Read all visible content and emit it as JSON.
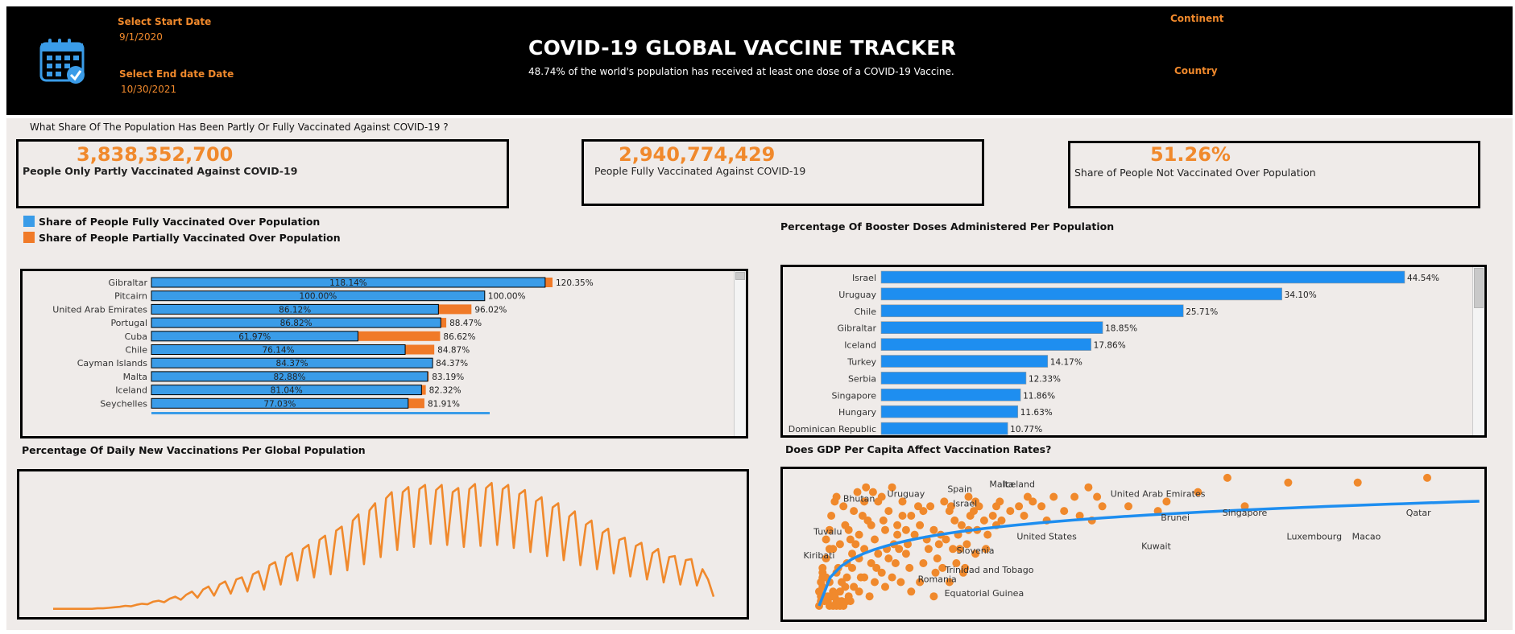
{
  "header": {
    "title": "COVID-19 GLOBAL VACCINE TRACKER",
    "subtitle": "48.74% of the world's population has received at least one dose of a COVID-19 Vaccine.",
    "start_label": "Select Start Date",
    "start_value": "9/1/2020",
    "end_label": "Select End date Date",
    "end_value": "10/30/2021",
    "continent_label": "Continent",
    "country_label": "Country",
    "icon": "calendar-check-icon"
  },
  "question": "What Share Of The Population Has Been Partly Or Fully Vaccinated Against COVID-19 ?",
  "kpis": [
    {
      "value": "3,838,352,700",
      "label": "People Only Partly Vaccinated Against COVID-19"
    },
    {
      "value": "2,940,774,429",
      "label": "People Fully Vaccinated Against COVID-19"
    },
    {
      "value": "51.26%",
      "label": "Share of People Not Vaccinated Over Population"
    }
  ],
  "legend": {
    "fully": "Share of People Fully Vaccinated Over Population",
    "partial": "Share of People Partially Vaccinated Over Population"
  },
  "colors": {
    "blue": "#3a9ce8",
    "orange": "#f07a28",
    "booster_blue": "#1e8ef0",
    "line_orange": "#f0892c"
  },
  "titles": {
    "booster": "Percentage Of Booster Doses Administered Per Population",
    "daily": "Percentage Of Daily New Vaccinations Per Global Population",
    "gdp": "Does GDP Per Capita Affect Vaccination Rates?"
  },
  "chart_data": [
    {
      "type": "bar",
      "id": "vaccination-share",
      "categories": [
        "Gibraltar",
        "Pitcairn",
        "United Arab Emirates",
        "Portugal",
        "Cuba",
        "Chile",
        "Cayman Islands",
        "Malta",
        "Iceland",
        "Seychelles"
      ],
      "series": [
        {
          "name": "Share of People Fully Vaccinated Over Population",
          "values": [
            118.14,
            100.0,
            86.12,
            86.82,
            61.97,
            76.14,
            84.37,
            82.88,
            81.04,
            77.03
          ],
          "labels": [
            "118.14%",
            "100.00%",
            "86.12%",
            "86.82%",
            "61.97%",
            "76.14%",
            "84.37%",
            "82.88%",
            "81.04%",
            "77.03%"
          ]
        },
        {
          "name": "Share of People Partially Vaccinated Over Population",
          "values": [
            120.35,
            100.0,
            96.02,
            88.47,
            86.62,
            84.87,
            84.37,
            83.19,
            82.32,
            81.91
          ],
          "labels": [
            "120.35%",
            "100.00%",
            "96.02%",
            "88.47%",
            "86.62%",
            "84.87%",
            "84.37%",
            "83.19%",
            "82.32%",
            "81.91%"
          ]
        }
      ],
      "xlim": [
        0,
        120.35
      ]
    },
    {
      "type": "bar",
      "id": "booster",
      "categories": [
        "Israel",
        "Uruguay",
        "Chile",
        "Gibraltar",
        "Iceland",
        "Turkey",
        "Serbia",
        "Singapore",
        "Hungary",
        "Dominican Republic"
      ],
      "values": [
        44.54,
        34.1,
        25.71,
        18.85,
        17.86,
        14.17,
        12.33,
        11.86,
        11.63,
        10.77
      ],
      "labels": [
        "44.54%",
        "34.10%",
        "25.71%",
        "18.85%",
        "17.86%",
        "14.17%",
        "12.33%",
        "11.86%",
        "11.63%",
        "10.77%"
      ],
      "xlim": [
        0,
        44.54
      ]
    },
    {
      "type": "line",
      "id": "daily-vaccinations",
      "x_start": "9/1/2020",
      "x_end": "10/30/2021",
      "values": [
        0.002,
        0.002,
        0.002,
        0.002,
        0.002,
        0.002,
        0.002,
        0.002,
        0.003,
        0.003,
        0.004,
        0.005,
        0.006,
        0.008,
        0.007,
        0.01,
        0.012,
        0.011,
        0.016,
        0.018,
        0.015,
        0.022,
        0.026,
        0.02,
        0.03,
        0.036,
        0.024,
        0.04,
        0.046,
        0.028,
        0.05,
        0.056,
        0.032,
        0.06,
        0.064,
        0.036,
        0.07,
        0.076,
        0.04,
        0.088,
        0.094,
        0.05,
        0.104,
        0.112,
        0.058,
        0.12,
        0.128,
        0.064,
        0.138,
        0.146,
        0.07,
        0.156,
        0.164,
        0.078,
        0.176,
        0.188,
        0.09,
        0.196,
        0.21,
        0.104,
        0.22,
        0.232,
        0.118,
        0.232,
        0.242,
        0.124,
        0.238,
        0.246,
        0.13,
        0.236,
        0.246,
        0.128,
        0.232,
        0.24,
        0.124,
        0.238,
        0.248,
        0.126,
        0.24,
        0.25,
        0.128,
        0.238,
        0.246,
        0.122,
        0.228,
        0.236,
        0.114,
        0.214,
        0.222,
        0.106,
        0.202,
        0.21,
        0.098,
        0.184,
        0.194,
        0.088,
        0.168,
        0.176,
        0.08,
        0.152,
        0.16,
        0.072,
        0.138,
        0.142,
        0.066,
        0.126,
        0.132,
        0.06,
        0.112,
        0.12,
        0.054,
        0.104,
        0.106,
        0.05,
        0.098,
        0.1,
        0.048,
        0.08,
        0.06,
        0.026
      ],
      "ylim": [
        0,
        0.26
      ]
    },
    {
      "type": "scatter",
      "id": "gdp-vs-vaccination",
      "annotations": [
        "Bhutan",
        "Uruguay",
        "Spain",
        "Malta",
        "Iceland",
        "Israel",
        "United Arab Emirates",
        "Brunei",
        "Singapore",
        "Qatar",
        "Luxembourg",
        "Macao",
        "Kuwait",
        "United States",
        "Tuvalu",
        "Kiribati",
        "Slovenia",
        "Trinidad and Tobago",
        "Romania",
        "Equatorial Guinea"
      ],
      "points": [
        [
          0.33,
          0.1
        ],
        [
          0.25,
          0.17
        ],
        [
          0.21,
          0.08
        ],
        [
          0.16,
          0.05
        ],
        [
          0.18,
          0.12
        ],
        [
          0.13,
          0.02
        ],
        [
          0.28,
          0.14
        ],
        [
          0.22,
          0.03
        ],
        [
          0.19,
          0.22
        ],
        [
          0.14,
          0.1
        ],
        [
          0.12,
          0.06
        ],
        [
          0.25,
          0.04
        ],
        [
          0.16,
          0.16
        ],
        [
          0.22,
          0.13
        ],
        [
          0.2,
          0.07
        ],
        [
          0.26,
          0.09
        ],
        [
          0.34,
          0.06
        ],
        [
          0.38,
          0.18
        ],
        [
          0.33,
          0.15
        ],
        [
          0.29,
          0.11
        ],
        [
          0.42,
          0.14
        ],
        [
          0.47,
          0.18
        ],
        [
          0.44,
          0.11
        ],
        [
          0.4,
          0.09
        ],
        [
          0.36,
          0.12
        ],
        [
          0.31,
          0.13
        ],
        [
          0.27,
          0.16
        ],
        [
          0.5,
          0.2
        ],
        [
          0.55,
          0.17
        ],
        [
          0.6,
          0.16
        ],
        [
          0.65,
          0.15
        ],
        [
          0.7,
          0.2
        ],
        [
          0.68,
          0.17
        ],
        [
          0.58,
          0.22
        ],
        [
          0.63,
          0.19
        ],
        [
          0.72,
          0.14
        ],
        [
          0.76,
          0.16
        ],
        [
          0.8,
          0.15
        ],
        [
          0.85,
          0.2
        ],
        [
          0.88,
          0.18
        ],
        [
          0.74,
          0.21
        ],
        [
          0.67,
          0.21
        ],
        [
          0.96,
          0.23
        ],
        [
          0.58,
          0.19
        ],
        [
          0.82,
          0.22
        ],
        [
          0.86,
          0.21
        ],
        [
          0.92,
          0.17
        ],
        [
          0.97,
          0.19
        ],
        [
          1.0,
          0.22
        ],
        [
          1.02,
          0.21
        ],
        [
          0.79,
          0.13
        ],
        [
          0.83,
          0.14
        ],
        [
          0.91,
          0.12
        ],
        [
          0.95,
          0.13
        ],
        [
          0.99,
          0.2
        ],
        [
          1.1,
          0.19
        ],
        [
          1.12,
          0.17
        ],
        [
          1.25,
          0.21
        ],
        [
          1.3,
          0.23
        ],
        [
          1.38,
          0.21
        ],
        [
          1.45,
          0.23
        ],
        [
          1.12,
          0.21
        ],
        [
          1.05,
          0.18
        ],
        [
          0.96,
          0.16
        ],
        [
          0.89,
          0.09
        ],
        [
          0.94,
          0.08
        ],
        [
          1.0,
          0.11
        ],
        [
          1.06,
          0.12
        ],
        [
          1.14,
          0.22
        ],
        [
          1.7,
          0.23
        ],
        [
          1.88,
          0.21
        ],
        [
          2.05,
          0.2
        ],
        [
          2.28,
          0.24
        ],
        [
          1.57,
          0.23
        ],
        [
          1.73,
          0.21
        ],
        [
          1.6,
          0.19
        ],
        [
          1.65,
          0.25
        ],
        [
          0.2,
          0.23
        ],
        [
          0.17,
          0.19
        ],
        [
          0.24,
          0.21
        ],
        [
          0.3,
          0.2
        ],
        [
          0.32,
          0.24
        ],
        [
          0.37,
          0.25
        ],
        [
          0.41,
          0.24
        ],
        [
          0.46,
          0.23
        ],
        [
          0.36,
          0.22
        ],
        [
          0.52,
          0.25
        ],
        [
          0.44,
          0.22
        ],
        [
          0.35,
          0.19
        ],
        [
          0.4,
          0.17
        ],
        [
          0.48,
          0.16
        ],
        [
          0.53,
          0.13
        ],
        [
          0.56,
          0.12
        ],
        [
          0.5,
          0.1
        ],
        [
          0.46,
          0.07
        ],
        [
          0.52,
          0.06
        ],
        [
          0.57,
          0.05
        ],
        [
          0.63,
          0.03
        ],
        [
          0.68,
          0.05
        ],
        [
          0.76,
          0.02
        ],
        [
          0.85,
          0.05
        ],
        [
          0.93,
          0.07
        ],
        [
          0.62,
          0.08
        ],
        [
          0.7,
          0.09
        ],
        [
          0.78,
          0.1
        ],
        [
          0.6,
          0.11
        ],
        [
          0.54,
          0.09
        ],
        [
          0.48,
          0.04
        ],
        [
          0.42,
          0.05
        ],
        [
          0.39,
          0.02
        ],
        [
          0.3,
          0.04
        ],
        [
          0.27,
          0.02
        ],
        [
          0.2,
          0.01
        ],
        [
          0.15,
          0.01
        ],
        [
          0.1,
          0.0
        ],
        [
          0.11,
          0.02
        ],
        [
          0.12,
          0.04
        ],
        [
          0.14,
          0.06
        ],
        [
          0.18,
          0.03
        ],
        [
          0.23,
          0.05
        ],
        [
          0.26,
          0.06
        ],
        [
          0.29,
          0.08
        ],
        [
          0.33,
          0.03
        ],
        [
          0.36,
          0.06
        ],
        [
          0.43,
          0.08
        ],
        [
          0.49,
          0.12
        ],
        [
          0.55,
          0.15
        ],
        [
          0.61,
          0.13
        ],
        [
          0.73,
          0.12
        ],
        [
          0.77,
          0.07
        ],
        [
          0.81,
          0.08
        ],
        [
          0.87,
          0.12
        ],
        [
          0.9,
          0.15
        ],
        [
          1.01,
          0.16
        ],
        [
          1.07,
          0.15
        ],
        [
          1.15,
          0.18
        ],
        [
          1.2,
          0.2
        ],
        [
          1.28,
          0.19
        ],
        [
          1.33,
          0.22
        ],
        [
          1.41,
          0.18
        ],
        [
          1.51,
          0.2
        ],
        [
          1.67,
          0.18
        ],
        [
          2.45,
          0.27
        ],
        [
          2.8,
          0.26
        ],
        [
          3.2,
          0.26
        ],
        [
          3.6,
          0.27
        ],
        [
          2.1,
          0.22
        ],
        [
          2.55,
          0.21
        ],
        [
          0.14,
          0.14
        ],
        [
          0.16,
          0.12
        ],
        [
          0.12,
          0.08
        ],
        [
          0.11,
          0.01
        ],
        [
          0.13,
          0.01
        ],
        [
          0.15,
          0.02
        ],
        [
          0.17,
          0.02
        ],
        [
          0.19,
          0.02
        ],
        [
          0.21,
          0.01
        ],
        [
          0.23,
          0.01
        ],
        [
          0.16,
          0.0
        ],
        [
          0.18,
          0.0
        ],
        [
          0.2,
          0.0
        ],
        [
          0.22,
          0.0
        ],
        [
          0.24,
          0.0
        ],
        [
          0.26,
          0.01
        ],
        [
          0.28,
          0.01
        ],
        [
          0.1,
          0.03
        ],
        [
          0.11,
          0.05
        ],
        [
          0.12,
          0.07
        ]
      ],
      "trend": [
        [
          0.1,
          0.0
        ],
        [
          0.2,
          0.1
        ],
        [
          0.4,
          0.17
        ],
        [
          0.7,
          0.21
        ],
        [
          1.0,
          0.23
        ],
        [
          1.5,
          0.25
        ],
        [
          2.0,
          0.26
        ],
        [
          2.5,
          0.265
        ],
        [
          3.0,
          0.27
        ],
        [
          3.6,
          0.275
        ]
      ],
      "labels": [
        {
          "text": "Bhutan",
          "at": [
            0.33,
            0.22
          ]
        },
        {
          "text": "Uruguay",
          "at": [
            0.6,
            0.23
          ]
        },
        {
          "text": "Spain",
          "at": [
            0.91,
            0.24
          ]
        },
        {
          "text": "Malta",
          "at": [
            1.15,
            0.25
          ]
        },
        {
          "text": "Iceland",
          "at": [
            1.25,
            0.25
          ]
        },
        {
          "text": "Israel",
          "at": [
            0.94,
            0.21
          ]
        },
        {
          "text": "United Arab Emirates",
          "at": [
            2.05,
            0.23
          ]
        },
        {
          "text": "Brunei",
          "at": [
            2.15,
            0.18
          ]
        },
        {
          "text": "Singapore",
          "at": [
            2.55,
            0.19
          ]
        },
        {
          "text": "Qatar",
          "at": [
            3.55,
            0.19
          ]
        },
        {
          "text": "Luxembourg",
          "at": [
            2.95,
            0.14
          ]
        },
        {
          "text": "Macao",
          "at": [
            3.25,
            0.14
          ]
        },
        {
          "text": "Kuwait",
          "at": [
            2.04,
            0.12
          ]
        },
        {
          "text": "United States",
          "at": [
            1.41,
            0.14
          ]
        },
        {
          "text": "Tuvalu",
          "at": [
            0.15,
            0.15
          ]
        },
        {
          "text": "Kiribati",
          "at": [
            0.1,
            0.1
          ]
        },
        {
          "text": "Slovenia",
          "at": [
            1.0,
            0.11
          ]
        },
        {
          "text": "Trinidad and Tobago",
          "at": [
            1.08,
            0.07
          ]
        },
        {
          "text": "Romania",
          "at": [
            0.78,
            0.05
          ]
        },
        {
          "text": "Equatorial Guinea",
          "at": [
            1.05,
            0.02
          ]
        }
      ]
    }
  ]
}
